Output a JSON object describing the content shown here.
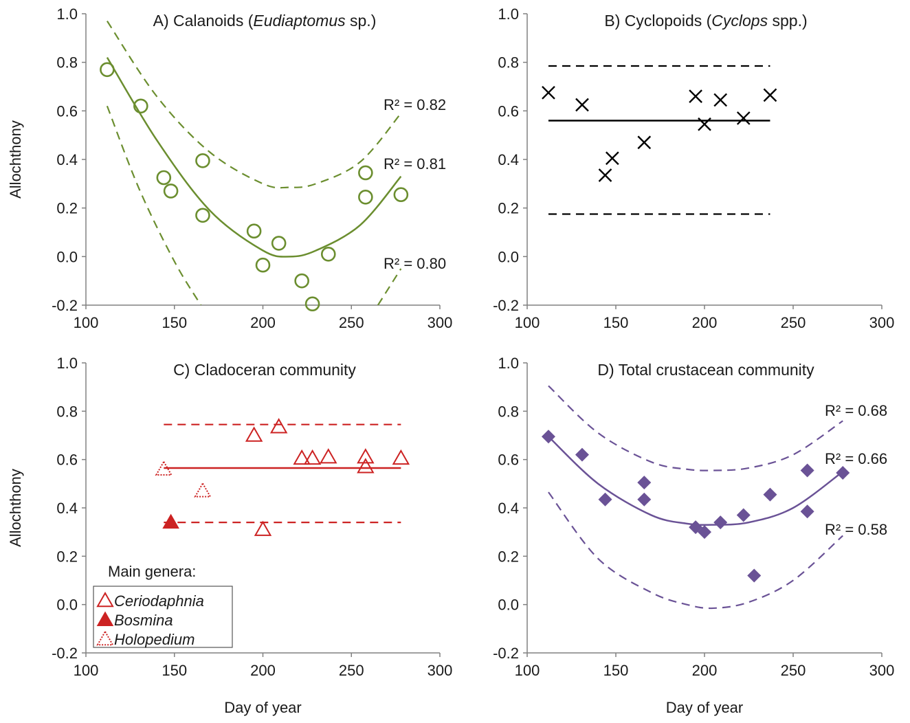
{
  "chart_data": [
    {
      "id": "A",
      "type": "scatter",
      "title_prefix": "A) Calanoids (",
      "title_italic": "Eudiaptomus",
      "title_suffix": " sp.)",
      "xlabel": "",
      "ylabel": "Allochthony",
      "xlim": [
        100,
        300
      ],
      "ylim": [
        -0.2,
        1.0
      ],
      "xticks": [
        "100",
        "150",
        "200",
        "250",
        "300"
      ],
      "yticks": [
        "-0.2",
        "0.0",
        "0.2",
        "0.4",
        "0.6",
        "0.8",
        "1.0"
      ],
      "color": "#6b8e2f",
      "marker": "circle-open",
      "points": [
        [
          112,
          0.77
        ],
        [
          131,
          0.62
        ],
        [
          144,
          0.325
        ],
        [
          148,
          0.27
        ],
        [
          166,
          0.395
        ],
        [
          166,
          0.17
        ],
        [
          195,
          0.105
        ],
        [
          200,
          -0.035
        ],
        [
          209,
          0.055
        ],
        [
          222,
          -0.1
        ],
        [
          228,
          -0.195
        ],
        [
          237,
          0.01
        ],
        [
          258,
          0.345
        ],
        [
          258,
          0.245
        ],
        [
          278,
          0.255
        ]
      ],
      "fits": [
        {
          "style": "dashed",
          "r2": "R² = 0.82",
          "points": [
            [
              112,
              0.97
            ],
            [
              140,
              0.66
            ],
            [
              170,
              0.43
            ],
            [
              200,
              0.3
            ],
            [
              215,
              0.285
            ],
            [
              230,
              0.3
            ],
            [
              255,
              0.39
            ],
            [
              278,
              0.59
            ]
          ]
        },
        {
          "style": "solid",
          "r2": "R² = 0.81",
          "points": [
            [
              112,
              0.82
            ],
            [
              140,
              0.48
            ],
            [
              170,
              0.19
            ],
            [
              200,
              0.025
            ],
            [
              215,
              0.0
            ],
            [
              230,
              0.025
            ],
            [
              255,
              0.13
            ],
            [
              278,
              0.33
            ]
          ]
        },
        {
          "style": "dashed",
          "r2": "R² = 0.80",
          "points": [
            [
              112,
              0.62
            ],
            [
              130,
              0.28
            ],
            [
              150,
              -0.02
            ],
            [
              165,
              -0.2
            ]
          ]
        },
        {
          "style": "dashed",
          "r2": "",
          "points": [
            [
              265,
              -0.2
            ],
            [
              278,
              -0.05
            ]
          ]
        }
      ]
    },
    {
      "id": "B",
      "type": "scatter",
      "title_prefix": "B) Cyclopoids (",
      "title_italic": "Cyclops",
      "title_suffix": " spp.)",
      "xlabel": "",
      "ylabel": "",
      "xlim": [
        100,
        300
      ],
      "ylim": [
        -0.2,
        1.0
      ],
      "xticks": [
        "100",
        "150",
        "200",
        "250",
        "300"
      ],
      "yticks": [
        "-0.2",
        "0.0",
        "0.2",
        "0.4",
        "0.6",
        "0.8",
        "1.0"
      ],
      "color": "#000000",
      "marker": "x",
      "points": [
        [
          112,
          0.675
        ],
        [
          131,
          0.625
        ],
        [
          144,
          0.335
        ],
        [
          148,
          0.405
        ],
        [
          166,
          0.47
        ],
        [
          195,
          0.66
        ],
        [
          200,
          0.545
        ],
        [
          209,
          0.645
        ],
        [
          222,
          0.57
        ],
        [
          237,
          0.665
        ]
      ],
      "fits": [
        {
          "style": "dashed",
          "r2": "",
          "points": [
            [
              112,
              0.785
            ],
            [
              237,
              0.785
            ]
          ]
        },
        {
          "style": "solid",
          "r2": "",
          "points": [
            [
              112,
              0.56
            ],
            [
              237,
              0.56
            ]
          ]
        },
        {
          "style": "dashed",
          "r2": "",
          "points": [
            [
              112,
              0.175
            ],
            [
              237,
              0.175
            ]
          ]
        }
      ]
    },
    {
      "id": "C",
      "type": "scatter",
      "title_prefix": "C) Cladoceran community",
      "title_italic": "",
      "title_suffix": "",
      "xlabel": "Day of year",
      "ylabel": "Allochthony",
      "xlim": [
        100,
        300
      ],
      "ylim": [
        -0.2,
        1.0
      ],
      "xticks": [
        "100",
        "150",
        "200",
        "250",
        "300"
      ],
      "yticks": [
        "-0.2",
        "0.0",
        "0.2",
        "0.4",
        "0.6",
        "0.8",
        "1.0"
      ],
      "color": "#cc2222",
      "series": [
        {
          "name": "Ceriodaphnia",
          "marker": "triangle-open",
          "points": [
            [
              195,
              0.7
            ],
            [
              209,
              0.735
            ],
            [
              222,
              0.605
            ],
            [
              228,
              0.605
            ],
            [
              237,
              0.61
            ],
            [
              258,
              0.61
            ],
            [
              258,
              0.57
            ],
            [
              278,
              0.605
            ],
            [
              200,
              0.31
            ]
          ]
        },
        {
          "name": "Bosmina",
          "marker": "triangle-filled",
          "points": [
            [
              148,
              0.34
            ]
          ]
        },
        {
          "name": "Holopedium",
          "marker": "triangle-dotted",
          "points": [
            [
              144,
              0.56
            ],
            [
              166,
              0.47
            ]
          ]
        }
      ],
      "legend_title": "Main genera:",
      "legend_location": "bottom-left",
      "fits": [
        {
          "style": "dashed",
          "r2": "",
          "points": [
            [
              144,
              0.745
            ],
            [
              278,
              0.745
            ]
          ]
        },
        {
          "style": "solid",
          "r2": "",
          "points": [
            [
              144,
              0.565
            ],
            [
              278,
              0.565
            ]
          ]
        },
        {
          "style": "dashed",
          "r2": "",
          "points": [
            [
              144,
              0.34
            ],
            [
              278,
              0.34
            ]
          ]
        }
      ]
    },
    {
      "id": "D",
      "type": "scatter",
      "title_prefix": "D) Total crustacean community",
      "title_italic": "",
      "title_suffix": "",
      "xlabel": "Day of year",
      "ylabel": "",
      "xlim": [
        100,
        300
      ],
      "ylim": [
        -0.2,
        1.0
      ],
      "xticks": [
        "100",
        "150",
        "200",
        "250",
        "300"
      ],
      "yticks": [
        "-0.2",
        "0.0",
        "0.2",
        "0.4",
        "0.6",
        "0.8",
        "1.0"
      ],
      "color": "#6a5296",
      "marker": "diamond-filled",
      "points": [
        [
          112,
          0.695
        ],
        [
          131,
          0.62
        ],
        [
          144,
          0.435
        ],
        [
          166,
          0.505
        ],
        [
          166,
          0.435
        ],
        [
          195,
          0.32
        ],
        [
          200,
          0.3
        ],
        [
          209,
          0.34
        ],
        [
          222,
          0.37
        ],
        [
          228,
          0.12
        ],
        [
          237,
          0.455
        ],
        [
          258,
          0.555
        ],
        [
          258,
          0.385
        ],
        [
          278,
          0.545
        ]
      ],
      "fits": [
        {
          "style": "dashed",
          "r2": "R² = 0.68",
          "points": [
            [
              112,
              0.905
            ],
            [
              140,
              0.71
            ],
            [
              170,
              0.59
            ],
            [
              190,
              0.56
            ],
            [
              205,
              0.555
            ],
            [
              225,
              0.565
            ],
            [
              250,
              0.62
            ],
            [
              278,
              0.76
            ]
          ]
        },
        {
          "style": "solid",
          "r2": "R² = 0.66",
          "points": [
            [
              112,
              0.695
            ],
            [
              140,
              0.5
            ],
            [
              170,
              0.37
            ],
            [
              190,
              0.335
            ],
            [
              205,
              0.33
            ],
            [
              225,
              0.34
            ],
            [
              250,
              0.4
            ],
            [
              278,
              0.55
            ]
          ]
        },
        {
          "style": "dashed",
          "r2": "R² = 0.58",
          "points": [
            [
              112,
              0.465
            ],
            [
              140,
              0.19
            ],
            [
              170,
              0.05
            ],
            [
              190,
              0.0
            ],
            [
              205,
              -0.015
            ],
            [
              225,
              0.01
            ],
            [
              250,
              0.1
            ],
            [
              278,
              0.285
            ]
          ]
        }
      ]
    }
  ]
}
